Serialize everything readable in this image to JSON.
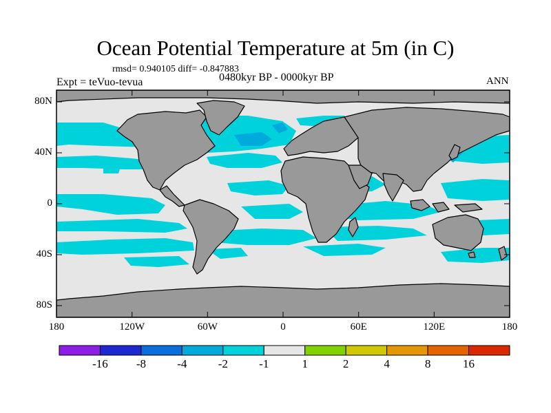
{
  "title": "Ocean Potential Temperature at 5m (in C)",
  "stats_line": "rmsd= 0.940105 diff= -0.847883",
  "experiment": "Expt = teVuo-tevua",
  "period": "0480kyr BP - 0000kyr BP",
  "season": "ANN",
  "lat_ticks": [
    "80N",
    "40N",
    "0",
    "40S",
    "80S"
  ],
  "lon_ticks": [
    "180",
    "120W",
    "60W",
    "0",
    "60E",
    "120E",
    "180"
  ],
  "colors": {
    "land": "#999999",
    "ocean_neutral": "#e6e6e6",
    "cooling_minus1_to_minus2": "#00d2dc",
    "cooling_minus2_to_minus4": "#00aadc",
    "coastline": "#000000"
  },
  "colorbar": {
    "bins": [
      "#8c1ee6",
      "#1e28d2",
      "#0a6edc",
      "#00aadc",
      "#00d2dc",
      "#e6e6e6",
      "#82d200",
      "#d2c800",
      "#e69600",
      "#e66400",
      "#dc2800"
    ],
    "labels": [
      "-16",
      "-8",
      "-4",
      "-2",
      "-1",
      "1",
      "2",
      "4",
      "8",
      "16"
    ]
  }
}
